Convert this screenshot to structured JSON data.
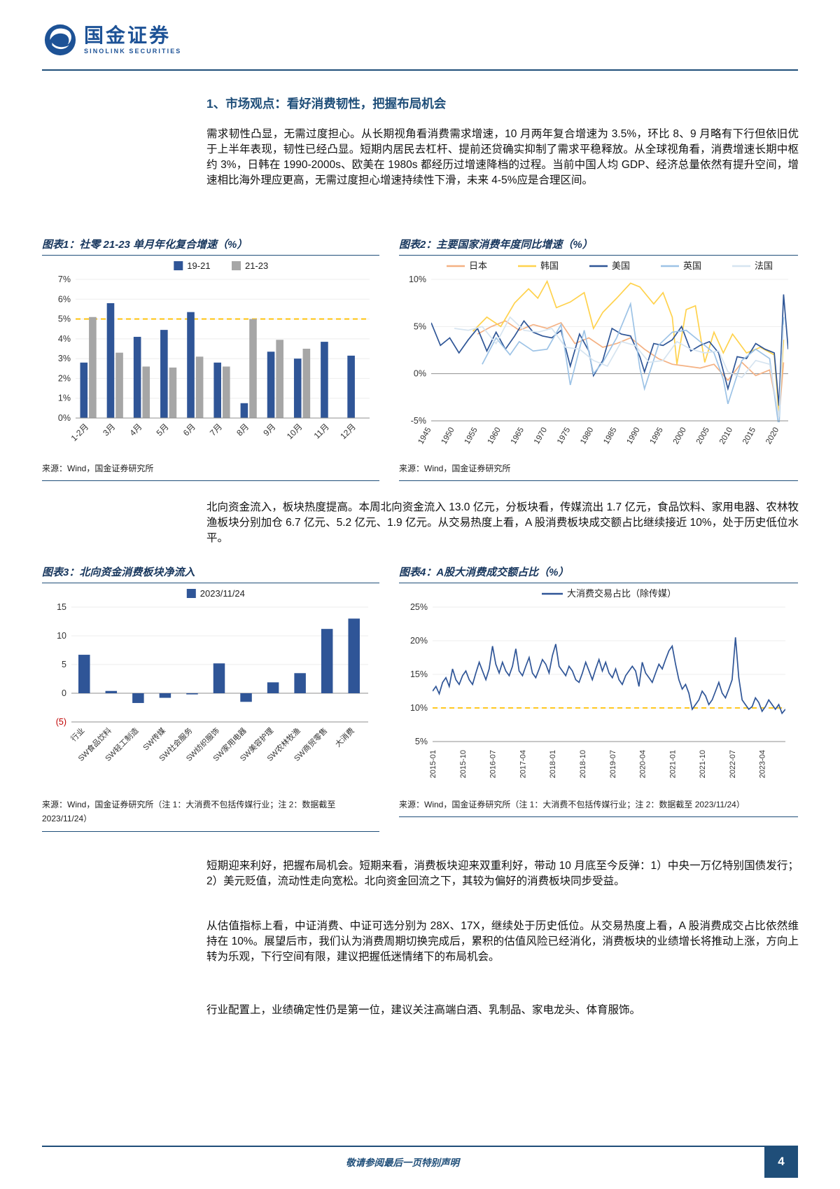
{
  "header": {
    "brand_cn": "国金证券",
    "brand_en": "SINOLINK SECURITIES"
  },
  "section_title": "1、市场观点：看好消费韧性，把握布局机会",
  "paragraphs": {
    "p1": "需求韧性凸显，无需过度担心。从长期视角看消费需求增速，10 月两年复合增速为 3.5%，环比 8、9 月略有下行但依旧优于上半年表现，韧性已经凸显。短期内居民去杠杆、提前还贷确实抑制了需求平稳释放。从全球视角看，消费增速长期中枢约 3%，日韩在 1990-2000s、欧美在 1980s 都经历过增速降档的过程。当前中国人均 GDP、经济总量依然有提升空间，增速相比海外理应更高，无需过度担心增速持续性下滑，未来 4-5%应是合理区间。",
    "p2": "北向资金流入，板块热度提高。本周北向资金流入 13.0 亿元，分板块看，传媒流出 1.7 亿元，食品饮料、家用电器、农林牧渔板块分别加仓 6.7 亿元、5.2 亿元、1.9 亿元。从交易热度上看，A 股消费板块成交额占比继续接近 10%，处于历史低位水平。",
    "p3": "短期迎来利好，把握布局机会。短期来看，消费板块迎来双重利好，带动 10 月底至今反弹：1）中央一万亿特别国债发行；2）美元贬值，流动性走向宽松。北向资金回流之下，其较为偏好的消费板块同步受益。",
    "p4": "从估值指标上看，中证消费、中证可选分别为 28X、17X，继续处于历史低位。从交易热度上看，A 股消费成交占比依然维持在 10%。展望后市，我们认为消费周期切换完成后，累积的估值风险已经消化，消费板块的业绩增长将推动上涨，方向上转为乐观，下行空间有限，建议把握低迷情绪下的布局机会。",
    "p5": "行业配置上，业绩确定性仍是第一位，建议关注高端白酒、乳制品、家电龙头、体育服饰。"
  },
  "figures": [
    {
      "title": "图表1：社零 21-23 单月年化复合增速（%）",
      "source": "来源：Wind，国金证券研究所"
    },
    {
      "title": "图表2：主要国家消费年度同比增速（%）",
      "source": "来源：Wind，国金证券研究所"
    },
    {
      "title": "图表3：北向资金消费板块净流入",
      "source": "来源：Wind，国金证券研究所（注 1：大消费不包括传媒行业；注 2：数据截至 2023/11/24）"
    },
    {
      "title": "图表4：A股大消费成交额占比（%）",
      "source": "来源：Wind，国金证券研究所（注 1：大消费不包括传媒行业；注 2：数据截至 2023/11/24）"
    }
  ],
  "footer": {
    "disclaimer": "敬请参阅最后一页特别声明",
    "page_number": "4"
  },
  "colors": {
    "navy": "#1F4E79",
    "bar_blue": "#2F5597",
    "gray": "#A6A6A6",
    "yellow": "#FFC000",
    "red": "#C00000"
  },
  "chart_data": [
    {
      "type": "bar",
      "title": "社零 21-23 单月年化复合增速（%）",
      "categories": [
        "1-2月",
        "3月",
        "4月",
        "5月",
        "6月",
        "7月",
        "8月",
        "9月",
        "10月",
        "11月",
        "12月"
      ],
      "series": [
        {
          "name": "19-21",
          "color": "#2F5597",
          "values": [
            2.8,
            5.8,
            4.1,
            4.45,
            5.35,
            2.8,
            0.75,
            3.35,
            3.0,
            3.85,
            3.15
          ]
        },
        {
          "name": "21-23",
          "color": "#A6A6A6",
          "values": [
            5.1,
            3.3,
            2.6,
            2.55,
            3.1,
            2.6,
            5.0,
            3.95,
            3.5,
            null,
            null
          ]
        }
      ],
      "ylim": [
        0,
        7
      ],
      "yticks": [
        0,
        1,
        2,
        3,
        4,
        5,
        6,
        7
      ],
      "ytick_labels": [
        "0%",
        "1%",
        "2%",
        "3%",
        "4%",
        "5%",
        "6%",
        "7%"
      ],
      "refline": {
        "value": 5,
        "color": "#FFC000"
      },
      "legend_position": "top"
    },
    {
      "type": "line",
      "title": "主要国家消费年度同比增速（%）",
      "xlim": [
        1945,
        2022
      ],
      "ylim": [
        -5,
        10
      ],
      "yticks": [
        -5,
        0,
        5,
        10
      ],
      "ytick_labels": [
        "-5%",
        "0%",
        "5%",
        "10%"
      ],
      "xticks": [
        1945,
        1950,
        1955,
        1960,
        1965,
        1970,
        1975,
        1980,
        1985,
        1990,
        1995,
        2000,
        2005,
        2010,
        2015,
        2020
      ],
      "legend_position": "top",
      "series": [
        {
          "name": "日本",
          "color": "#F4B183",
          "points": [
            [
              1955,
              4.2
            ],
            [
              1958,
              5.0
            ],
            [
              1961,
              5.6
            ],
            [
              1964,
              4.6
            ],
            [
              1967,
              5.2
            ],
            [
              1970,
              4.8
            ],
            [
              1973,
              5.4
            ],
            [
              1976,
              3.2
            ],
            [
              1979,
              3.8
            ],
            [
              1982,
              2.8
            ],
            [
              1985,
              3.2
            ],
            [
              1988,
              3.8
            ],
            [
              1991,
              2.6
            ],
            [
              1994,
              1.6
            ],
            [
              1997,
              1.0
            ],
            [
              2000,
              0.8
            ],
            [
              2003,
              0.6
            ],
            [
              2006,
              1.0
            ],
            [
              2009,
              -0.7
            ],
            [
              2012,
              1.2
            ],
            [
              2015,
              -0.2
            ],
            [
              2018,
              0.4
            ],
            [
              2020,
              -4.6
            ],
            [
              2021,
              1.2
            ]
          ]
        },
        {
          "name": "韩国",
          "color": "#FFD24D",
          "points": [
            [
              1954,
              4.5
            ],
            [
              1957,
              6.0
            ],
            [
              1960,
              5.0
            ],
            [
              1963,
              7.5
            ],
            [
              1966,
              9.0
            ],
            [
              1968,
              8.0
            ],
            [
              1970,
              9.8
            ],
            [
              1972,
              7.0
            ],
            [
              1975,
              7.6
            ],
            [
              1978,
              8.6
            ],
            [
              1980,
              4.8
            ],
            [
              1982,
              6.5
            ],
            [
              1985,
              8.0
            ],
            [
              1988,
              9.6
            ],
            [
              1990,
              9.2
            ],
            [
              1993,
              7.4
            ],
            [
              1995,
              8.6
            ],
            [
              1997,
              6.0
            ],
            [
              1998,
              1.0
            ],
            [
              2000,
              6.8
            ],
            [
              2002,
              7.2
            ],
            [
              2004,
              1.2
            ],
            [
              2006,
              4.4
            ],
            [
              2008,
              2.2
            ],
            [
              2010,
              4.2
            ],
            [
              2013,
              2.2
            ],
            [
              2016,
              2.8
            ],
            [
              2019,
              2.0
            ],
            [
              2020,
              -4.4
            ],
            [
              2021,
              3.6
            ]
          ]
        },
        {
          "name": "美国",
          "color": "#2E5596",
          "points": [
            [
              1945,
              5.4
            ],
            [
              1947,
              3.0
            ],
            [
              1949,
              3.8
            ],
            [
              1951,
              2.2
            ],
            [
              1953,
              3.6
            ],
            [
              1955,
              4.8
            ],
            [
              1957,
              2.4
            ],
            [
              1959,
              4.4
            ],
            [
              1961,
              2.6
            ],
            [
              1963,
              4.0
            ],
            [
              1965,
              5.6
            ],
            [
              1967,
              4.4
            ],
            [
              1969,
              4.0
            ],
            [
              1971,
              3.8
            ],
            [
              1973,
              4.6
            ],
            [
              1975,
              0.8
            ],
            [
              1977,
              4.2
            ],
            [
              1979,
              2.4
            ],
            [
              1980,
              -0.2
            ],
            [
              1982,
              1.4
            ],
            [
              1984,
              4.8
            ],
            [
              1986,
              4.2
            ],
            [
              1988,
              4.0
            ],
            [
              1990,
              1.8
            ],
            [
              1991,
              0.2
            ],
            [
              1993,
              3.2
            ],
            [
              1995,
              3.0
            ],
            [
              1997,
              3.6
            ],
            [
              1999,
              5.0
            ],
            [
              2001,
              2.4
            ],
            [
              2003,
              3.0
            ],
            [
              2005,
              3.4
            ],
            [
              2007,
              2.2
            ],
            [
              2009,
              -1.6
            ],
            [
              2011,
              1.8
            ],
            [
              2013,
              1.6
            ],
            [
              2015,
              3.2
            ],
            [
              2017,
              2.6
            ],
            [
              2019,
              2.2
            ],
            [
              2020,
              -3.4
            ],
            [
              2021,
              8.4
            ],
            [
              2022,
              2.6
            ]
          ]
        },
        {
          "name": "英国",
          "color": "#9DC3E6",
          "points": [
            [
              1956,
              1.0
            ],
            [
              1959,
              3.8
            ],
            [
              1962,
              2.0
            ],
            [
              1964,
              3.4
            ],
            [
              1967,
              2.4
            ],
            [
              1970,
              2.6
            ],
            [
              1973,
              5.2
            ],
            [
              1975,
              -1.2
            ],
            [
              1978,
              4.6
            ],
            [
              1980,
              0.0
            ],
            [
              1982,
              1.2
            ],
            [
              1985,
              3.8
            ],
            [
              1988,
              7.4
            ],
            [
              1990,
              0.6
            ],
            [
              1991,
              -1.6
            ],
            [
              1994,
              3.0
            ],
            [
              1997,
              4.4
            ],
            [
              2000,
              4.6
            ],
            [
              2003,
              3.4
            ],
            [
              2006,
              2.2
            ],
            [
              2008,
              -0.6
            ],
            [
              2009,
              -3.2
            ],
            [
              2012,
              1.4
            ],
            [
              2015,
              2.6
            ],
            [
              2018,
              1.6
            ],
            [
              2020,
              -5.8
            ],
            [
              2021,
              6.0
            ]
          ]
        },
        {
          "name": "法国",
          "color": "#D6E4F0",
          "points": [
            [
              1950,
              4.8
            ],
            [
              1953,
              4.6
            ],
            [
              1956,
              5.0
            ],
            [
              1959,
              3.2
            ],
            [
              1962,
              6.0
            ],
            [
              1965,
              4.6
            ],
            [
              1968,
              4.4
            ],
            [
              1971,
              4.8
            ],
            [
              1974,
              2.8
            ],
            [
              1977,
              2.6
            ],
            [
              1980,
              1.4
            ],
            [
              1983,
              0.8
            ],
            [
              1986,
              3.4
            ],
            [
              1989,
              3.0
            ],
            [
              1992,
              1.2
            ],
            [
              1995,
              1.4
            ],
            [
              1998,
              3.4
            ],
            [
              2001,
              2.6
            ],
            [
              2004,
              2.2
            ],
            [
              2007,
              2.4
            ],
            [
              2009,
              0.2
            ],
            [
              2012,
              -0.4
            ],
            [
              2015,
              1.4
            ],
            [
              2018,
              1.0
            ],
            [
              2020,
              -4.6
            ],
            [
              2021,
              5.2
            ]
          ]
        }
      ]
    },
    {
      "type": "bar",
      "title": "北向资金消费板块净流入",
      "categories": [
        "行业",
        "SW食品饮料",
        "SW轻工制造",
        "SW传媒",
        "SW社会服务",
        "SW纺织服饰",
        "SW家用电器",
        "SW美容护理",
        "SW农林牧渔",
        "SW商贸零售",
        "大消费"
      ],
      "series": [
        {
          "name": "2023/11/24",
          "color": "#2F5597",
          "values": [
            6.7,
            0.4,
            -1.7,
            -0.8,
            -0.2,
            5.2,
            -1.5,
            1.9,
            3.5,
            11.2,
            13.0
          ]
        }
      ],
      "ylim": [
        -5,
        15
      ],
      "yticks": [
        -5,
        0,
        5,
        10,
        15
      ],
      "ytick_labels": [
        "(5)",
        "0",
        "5",
        "10",
        "15"
      ],
      "ytick_colors": [
        "#C00000",
        "#333333",
        "#333333",
        "#333333",
        "#333333"
      ],
      "legend_position": "top"
    },
    {
      "type": "line_indexed",
      "title": "A股大消费成交额占比（%）",
      "ylim": [
        5,
        25
      ],
      "yticks": [
        5,
        10,
        15,
        20,
        25
      ],
      "ytick_labels": [
        "5%",
        "10%",
        "15%",
        "20%",
        "25%"
      ],
      "xtick_positions": [
        0,
        9,
        18,
        27,
        36,
        45,
        54,
        63,
        72,
        81,
        90,
        99
      ],
      "xtick_labels": [
        "2015-01",
        "2015-10",
        "2016-07",
        "2017-04",
        "2018-01",
        "2018-10",
        "2019-07",
        "2020-04",
        "2021-01",
        "2021-10",
        "2022-07",
        "2023-04"
      ],
      "refline": {
        "value": 10,
        "color": "#FFC000"
      },
      "legend_position": "top",
      "series": [
        {
          "name": "大消费交易占比（除传媒）",
          "color": "#2F5597",
          "values": [
            12.5,
            13.2,
            12.1,
            13.8,
            14.5,
            13.2,
            15.8,
            14.2,
            13.5,
            14.8,
            15.5,
            14.2,
            13.5,
            15.2,
            16.8,
            15.5,
            14.2,
            15.8,
            19.2,
            16.5,
            15.2,
            16.8,
            15.5,
            14.8,
            16.2,
            18.8,
            15.5,
            14.8,
            16.2,
            17.5,
            15.2,
            14.5,
            15.8,
            17.2,
            16.5,
            15.2,
            17.8,
            19.5,
            16.2,
            15.5,
            14.8,
            16.2,
            15.5,
            14.2,
            13.8,
            15.2,
            16.8,
            15.5,
            14.2,
            15.8,
            17.2,
            15.5,
            16.8,
            15.2,
            14.5,
            15.8,
            14.2,
            13.5,
            14.8,
            15.5,
            16.2,
            15.5,
            13.2,
            16.8,
            15.2,
            14.5,
            13.8,
            15.2,
            16.5,
            15.8,
            17.2,
            18.5,
            19.2,
            16.5,
            14.2,
            12.8,
            13.5,
            12.2,
            9.8,
            10.5,
            11.2,
            12.5,
            11.8,
            10.5,
            11.2,
            12.5,
            13.8,
            12.2,
            11.5,
            12.8,
            14.2,
            20.5,
            14.5,
            11.2,
            10.5,
            9.8,
            10.2,
            11.5,
            10.8,
            9.5,
            10.2,
            11.2,
            10.5,
            9.8,
            10.5,
            9.2,
            9.8
          ]
        }
      ]
    }
  ]
}
